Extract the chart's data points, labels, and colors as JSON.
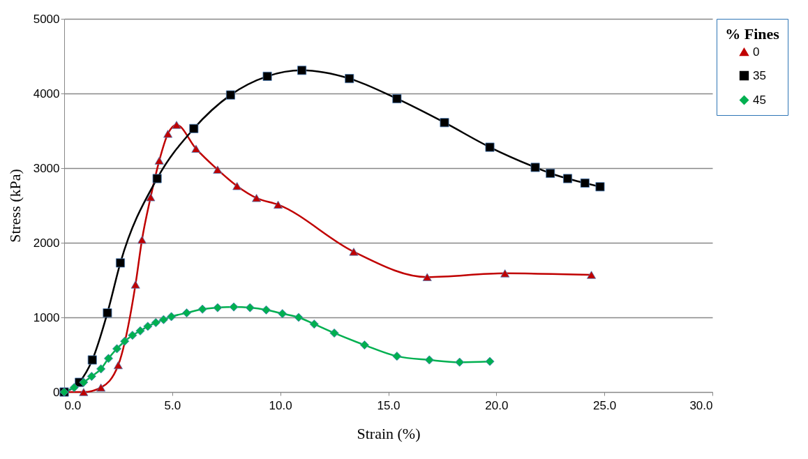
{
  "chart_data": {
    "type": "line",
    "xlabel": "Strain (%)",
    "ylabel": "Stress (kPa)",
    "legend_title": "% Fines",
    "xlim": [
      0,
      30
    ],
    "ylim": [
      0,
      5000
    ],
    "xticks": [
      {
        "value": 0,
        "label": "0.0"
      },
      {
        "value": 5,
        "label": "5.0"
      },
      {
        "value": 10,
        "label": "10.0"
      },
      {
        "value": 15,
        "label": "15.0"
      },
      {
        "value": 20,
        "label": "20.0"
      },
      {
        "value": 25,
        "label": "25.0"
      },
      {
        "value": 30,
        "label": "30.0"
      }
    ],
    "yticks": [
      0,
      1000,
      2000,
      3000,
      4000,
      5000
    ],
    "grid": "y",
    "legend": "top right",
    "line_style": "solid",
    "series": [
      {
        "name": "0",
        "color": "#c00000",
        "marker": "triangle",
        "x": [
          0,
          0.9,
          1.7,
          2.5,
          3.3,
          3.6,
          4.0,
          4.4,
          4.8,
          5.2,
          6.1,
          7.1,
          8.0,
          8.9,
          9.9,
          13.4,
          16.8,
          20.4,
          24.4
        ],
        "values": [
          0,
          0,
          60,
          360,
          1440,
          2040,
          2610,
          3100,
          3460,
          3580,
          3260,
          2980,
          2760,
          2600,
          2510,
          1880,
          1540,
          1590,
          1570
        ]
      },
      {
        "name": "35",
        "color": "#000000",
        "marker": "square",
        "x": [
          0,
          0.7,
          1.3,
          2.0,
          2.6,
          4.3,
          6.0,
          7.7,
          9.4,
          11.0,
          13.2,
          15.4,
          17.6,
          19.7,
          21.8,
          22.5,
          23.3,
          24.1,
          24.8
        ],
        "values": [
          0,
          130,
          430,
          1060,
          1730,
          2860,
          3530,
          3980,
          4230,
          4310,
          4200,
          3930,
          3610,
          3280,
          3010,
          2930,
          2860,
          2800,
          2750
        ]
      },
      {
        "name": "45",
        "color": "#00b050",
        "marker": "diamond",
        "x": [
          0,
          0.46,
          0.9,
          1.27,
          1.7,
          2.05,
          2.44,
          2.8,
          3.16,
          3.52,
          3.87,
          4.24,
          4.6,
          4.96,
          5.67,
          6.4,
          7.1,
          7.85,
          8.6,
          9.35,
          10.1,
          10.85,
          11.57,
          12.5,
          13.9,
          15.4,
          16.9,
          18.3,
          19.7
        ],
        "values": [
          0,
          60,
          130,
          210,
          310,
          450,
          580,
          680,
          760,
          820,
          880,
          930,
          970,
          1010,
          1060,
          1110,
          1130,
          1140,
          1130,
          1100,
          1050,
          1000,
          910,
          790,
          630,
          480,
          430,
          400,
          410
        ]
      }
    ]
  }
}
